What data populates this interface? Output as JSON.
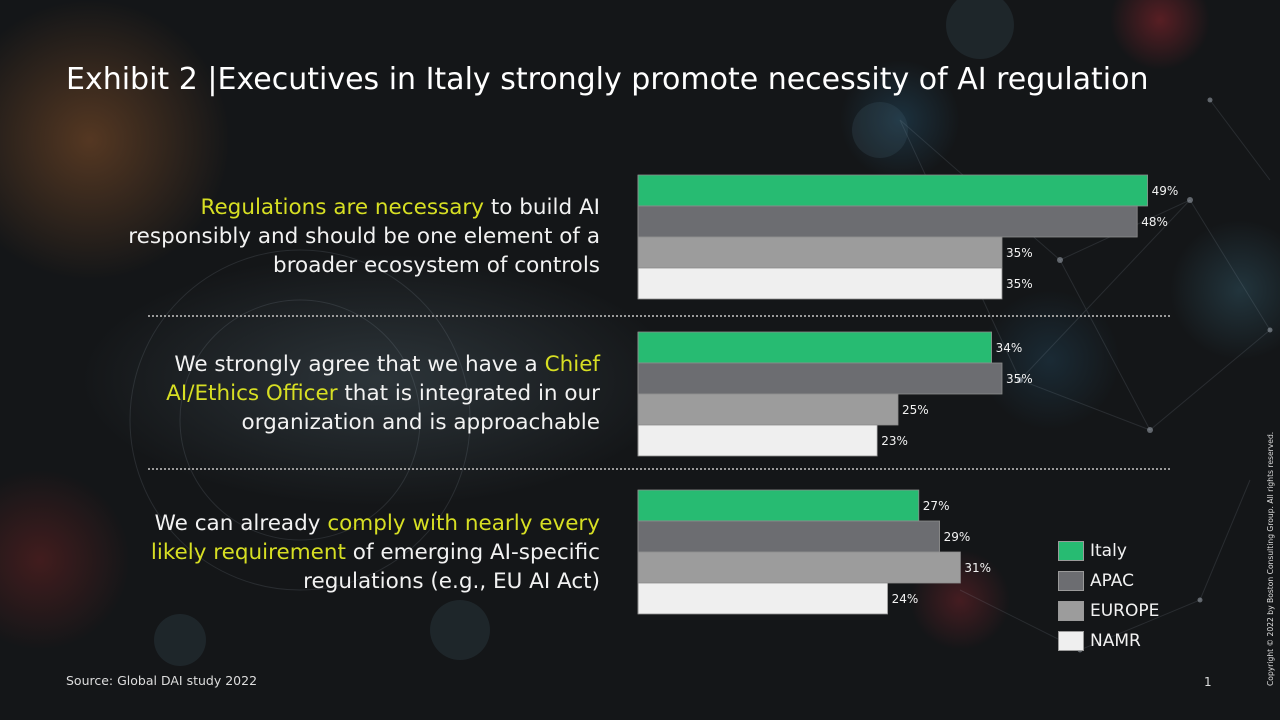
{
  "title": "Exhibit 2 |Executives in Italy strongly promote necessity of AI regulation",
  "statements": [
    [
      {
        "text": "Regulations are necessary",
        "highlight": true
      },
      {
        "text": " to build AI responsibly and should be one element of a broader ecosystem of controls",
        "highlight": false
      }
    ],
    [
      {
        "text": "We strongly agree that we have a ",
        "highlight": false
      },
      {
        "text": "Chief AI/Ethics Officer",
        "highlight": true
      },
      {
        "text": " that is integrated in our organization and is approachable",
        "highlight": false
      }
    ],
    [
      {
        "text": "We can already ",
        "highlight": false
      },
      {
        "text": "comply with nearly every likely requirement",
        "highlight": true
      },
      {
        "text": " of emerging AI-specific regulations (e.g., EU AI Act)",
        "highlight": false
      }
    ]
  ],
  "chart_data": {
    "type": "bar",
    "orientation": "horizontal",
    "categories": [
      "Regulations are necessary to build AI responsibly and should be one element of a broader ecosystem of controls",
      "We strongly agree that we have a Chief AI/Ethics Officer that is integrated in our organization and is approachable",
      "We can already comply with nearly every likely requirement of emerging AI-specific regulations (e.g., EU AI Act)"
    ],
    "series": [
      {
        "name": "Italy",
        "color": "#27bb72",
        "values": [
          49,
          34,
          27
        ]
      },
      {
        "name": "APAC",
        "color": "#6c6d71",
        "values": [
          48,
          35,
          29
        ]
      },
      {
        "name": "EUROPE",
        "color": "#9c9c9c",
        "values": [
          35,
          25,
          31
        ]
      },
      {
        "name": "NAMR",
        "color": "#efefef",
        "values": [
          35,
          23,
          24
        ]
      }
    ],
    "value_format": "percent",
    "data_labels": [
      "49%",
      "48%",
      "35%",
      "35%",
      "34%",
      "35%",
      "25%",
      "23%",
      "27%",
      "29%",
      "31%",
      "24%"
    ],
    "legend_position": "bottom-right",
    "grid": false
  },
  "source": "Source: Global DAI study 2022",
  "page_number": "1",
  "copyright": "Copyright © 2022 by Boston Consulting Group. All rights reserved.",
  "colors": {
    "accent_text": "#d7df23",
    "background": "#141618"
  }
}
